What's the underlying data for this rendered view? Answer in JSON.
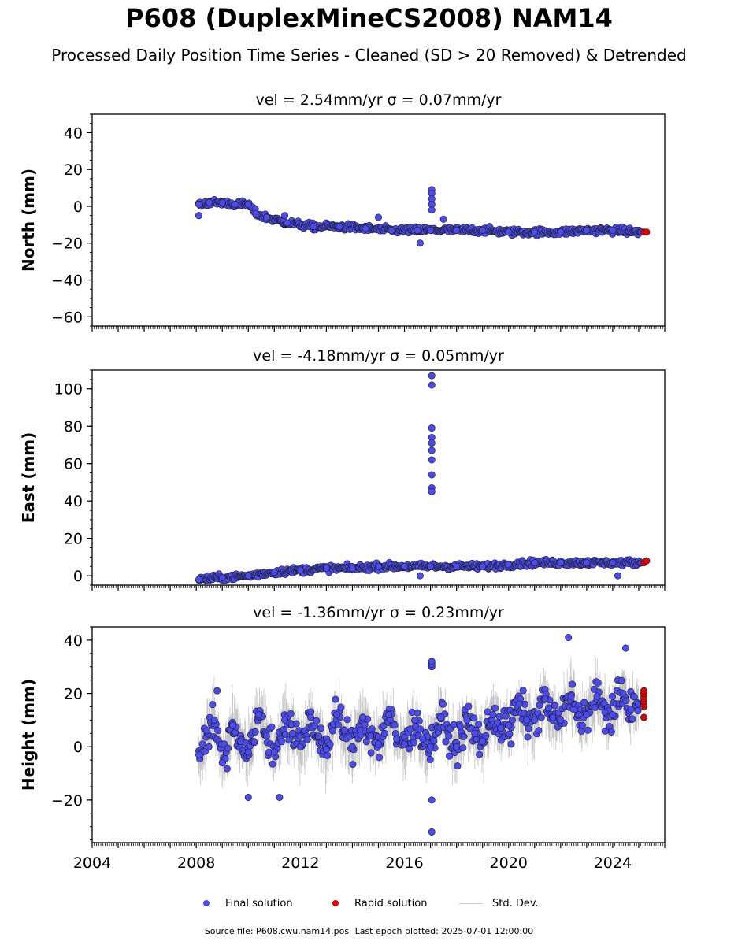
{
  "chart_data": {
    "type": "scatter",
    "title": "P608 (DuplexMineCS2008) NAM14",
    "subtitle": "Processed Daily Position Time Series - Cleaned (SD > 20 Removed) & Detrended",
    "x_axis": {
      "range": [
        2004,
        2026
      ],
      "tick_labels": [
        "2004",
        "2008",
        "2012",
        "2016",
        "2020",
        "2024"
      ],
      "tick_values": [
        2004,
        2008,
        2012,
        2016,
        2020,
        2024
      ]
    },
    "legend": {
      "placement": "bottom-center",
      "entries": [
        {
          "label": "Final solution",
          "color": "#4b4bf0",
          "marker": "circle"
        },
        {
          "label": "Rapid solution",
          "color": "#e00000",
          "marker": "circle"
        },
        {
          "label": "Std. Dev.",
          "color": "#cfcfcf",
          "marker": "line"
        }
      ]
    },
    "panels": [
      {
        "component": "north",
        "annotation": "vel = 2.54mm/yr   σ = 0.07mm/yr",
        "ylabel": "North (mm)",
        "ylim": [
          -65,
          50
        ],
        "yticks": [
          -60,
          -40,
          -20,
          0,
          20,
          40
        ],
        "series": [
          {
            "name": "Final solution",
            "x": [
              2008.1,
              2008.5,
              2009.0,
              2009.5,
              2010.0,
              2010.3,
              2010.7,
              2011.5,
              2012.5,
              2013.5,
              2014.5,
              2015.5,
              2016.5,
              2017.0,
              2018.0,
              2019.0,
              2020.0,
              2021.0,
              2022.0,
              2023.0,
              2024.0,
              2025.1
            ],
            "y": [
              1,
              2,
              2,
              1,
              1,
              -4,
              -6,
              -9,
              -11,
              -11,
              -12,
              -13,
              -13,
              -13,
              -13,
              -13,
              -14,
              -14,
              -14,
              -13,
              -13,
              -14
            ]
          },
          {
            "name": "Rapid solution",
            "x": [
              2025.2,
              2025.3
            ],
            "y": [
              -14,
              -14
            ]
          }
        ],
        "outliers": {
          "x": [
            2008.1,
            2016.6,
            2017.05,
            2017.05,
            2017.05,
            2017.05,
            2017.05,
            2017.5,
            2011.4,
            2015.0
          ],
          "y": [
            -5,
            -20,
            9,
            7,
            4,
            1,
            -2,
            -7,
            -5,
            -6
          ]
        }
      },
      {
        "component": "east",
        "annotation": "vel = -4.18mm/yr   σ = 0.05mm/yr",
        "ylabel": "East (mm)",
        "ylim": [
          -5,
          110
        ],
        "yticks": [
          0,
          20,
          40,
          60,
          80,
          100
        ],
        "series": [
          {
            "name": "Final solution",
            "x": [
              2008.1,
              2009.0,
              2010.0,
              2011.0,
              2012.0,
              2013.0,
              2014.0,
              2015.0,
              2016.0,
              2017.0,
              2018.0,
              2019.0,
              2020.0,
              2021.0,
              2022.0,
              2023.0,
              2024.0,
              2025.1
            ],
            "y": [
              -2,
              -1,
              0,
              2,
              3,
              4,
              4,
              5,
              5,
              5,
              5,
              5,
              6,
              7,
              7,
              7,
              7,
              7
            ]
          },
          {
            "name": "Rapid solution",
            "x": [
              2025.2,
              2025.3
            ],
            "y": [
              7,
              8
            ]
          }
        ],
        "outliers": {
          "x": [
            2017.05,
            2017.05,
            2017.05,
            2017.05,
            2017.05,
            2017.05,
            2017.05,
            2017.05,
            2017.05,
            2017.05,
            2016.6,
            2024.2
          ],
          "y": [
            107,
            102,
            79,
            74,
            71,
            67,
            62,
            54,
            47,
            45,
            0,
            0
          ]
        }
      },
      {
        "component": "height",
        "annotation": "vel = -1.36mm/yr   σ = 0.23mm/yr",
        "ylabel": "Height (mm)",
        "ylim": [
          -36,
          45
        ],
        "yticks": [
          -20,
          0,
          20,
          40
        ],
        "series": [
          {
            "name": "Final solution",
            "x": [
              2008.1,
              2008.4,
              2008.7,
              2009.0,
              2009.4,
              2009.7,
              2010.0,
              2010.4,
              2010.7,
              2011.0,
              2011.4,
              2011.7,
              2012.0,
              2012.4,
              2012.7,
              2013.0,
              2013.4,
              2013.7,
              2014.0,
              2014.4,
              2014.7,
              2015.0,
              2015.4,
              2015.7,
              2016.0,
              2016.4,
              2016.7,
              2017.0,
              2017.4,
              2017.7,
              2018.0,
              2018.4,
              2018.7,
              2019.0,
              2019.4,
              2019.7,
              2020.0,
              2020.4,
              2020.7,
              2021.0,
              2021.4,
              2021.7,
              2022.0,
              2022.4,
              2022.7,
              2023.0,
              2023.4,
              2023.7,
              2024.0,
              2024.4,
              2024.7,
              2025.0
            ],
            "y": [
              -3,
              6,
              10,
              -6,
              8,
              2,
              -2,
              12,
              4,
              -2,
              10,
              5,
              0,
              11,
              4,
              -1,
              12,
              6,
              0,
              11,
              4,
              1,
              12,
              3,
              1,
              10,
              3,
              0,
              11,
              4,
              0,
              10,
              5,
              2,
              12,
              7,
              8,
              16,
              10,
              10,
              18,
              11,
              10,
              19,
              12,
              12,
              19,
              13,
              12,
              20,
              14,
              16
            ]
          },
          {
            "name": "Rapid solution",
            "x": [
              2025.2,
              2025.2,
              2025.2,
              2025.2,
              2025.2,
              2025.2,
              2025.2,
              2025.2
            ],
            "y": [
              11,
              15,
              16,
              17,
              18,
              19,
              20,
              21
            ]
          }
        ],
        "outliers": {
          "x": [
            2017.05,
            2017.05,
            2017.05,
            2017.05,
            2017.05,
            2022.3,
            2024.5,
            2008.8,
            2010.0,
            2011.2,
            2020.1
          ],
          "y": [
            -32,
            -20,
            30,
            31,
            32,
            41,
            37,
            21,
            -19,
            -19,
            1
          ]
        }
      }
    ]
  },
  "footer": {
    "source_file": "Source file: P608.cwu.nam14.pos",
    "last_epoch": "Last epoch plotted: 2025-07-01 12:00:00"
  }
}
